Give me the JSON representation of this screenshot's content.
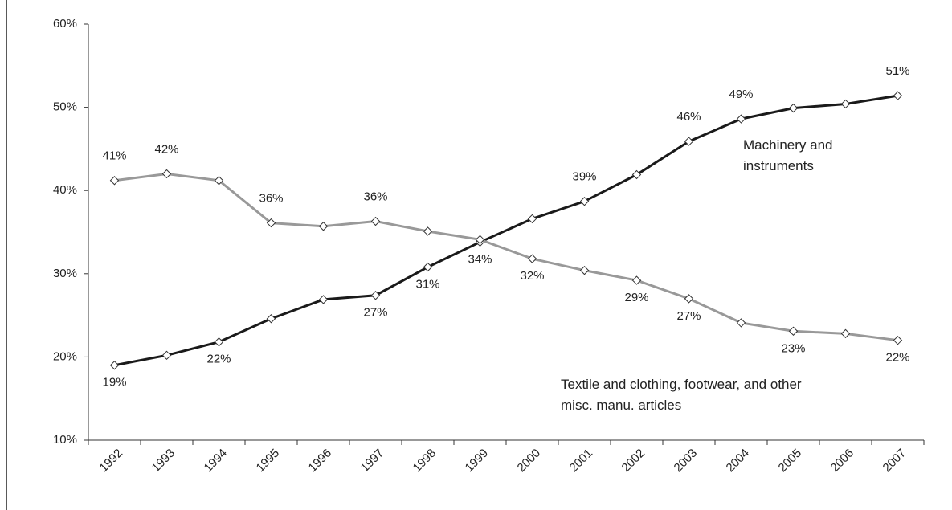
{
  "chart_data": {
    "type": "line",
    "categories": [
      "1992",
      "1993",
      "1994",
      "1995",
      "1996",
      "1997",
      "1998",
      "1999",
      "2000",
      "2001",
      "2002",
      "2003",
      "2004",
      "2005",
      "2006",
      "2007"
    ],
    "series": [
      {
        "name": "Machinery and instruments",
        "color": "#1a1a1a",
        "values": [
          19.0,
          20.2,
          21.8,
          24.6,
          26.9,
          27.4,
          30.8,
          33.8,
          36.6,
          38.7,
          41.9,
          45.9,
          48.6,
          49.9,
          50.4,
          51.4
        ],
        "value_labels": [
          "19%",
          null,
          "22%",
          null,
          null,
          "27%",
          "31%",
          "34%",
          null,
          "39%",
          null,
          "46%",
          "49%",
          null,
          null,
          "51%"
        ]
      },
      {
        "name": "Textile and clothing, footwear, and other misc. manu. articles",
        "color": "#999999",
        "values": [
          41.2,
          42.0,
          41.2,
          36.1,
          35.7,
          36.3,
          35.1,
          34.1,
          31.8,
          30.4,
          29.2,
          27.0,
          24.1,
          23.1,
          22.8,
          22.0
        ],
        "value_labels": [
          "41%",
          "42%",
          null,
          "36%",
          null,
          "36%",
          null,
          null,
          "32%",
          null,
          "29%",
          "27%",
          null,
          "23%",
          null,
          "22%"
        ]
      }
    ],
    "ylim": [
      10,
      60
    ],
    "yticks": [
      {
        "value": 10,
        "label": "10%"
      },
      {
        "value": 20,
        "label": "20%"
      },
      {
        "value": 30,
        "label": "30%"
      },
      {
        "value": 40,
        "label": "40%"
      },
      {
        "value": 50,
        "label": "50%"
      },
      {
        "value": 60,
        "label": "60%"
      }
    ]
  }
}
